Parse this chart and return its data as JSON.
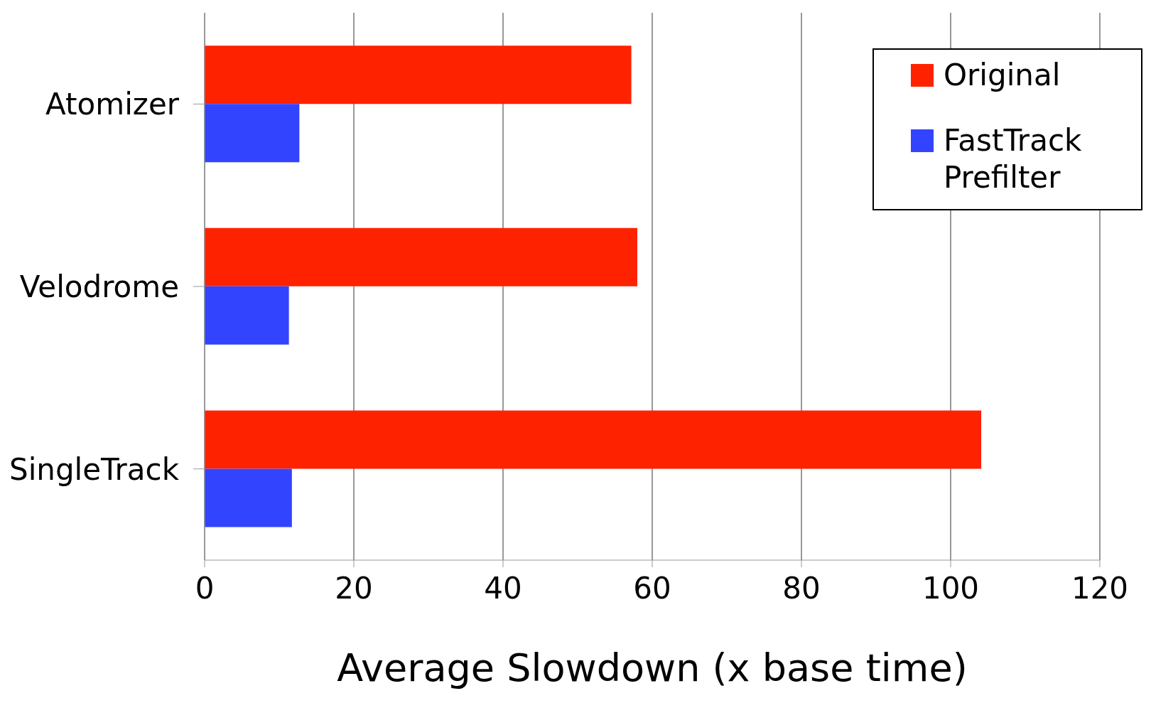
{
  "chart_data": {
    "type": "bar",
    "orientation": "horizontal",
    "xlabel": "Average Slowdown (x base time)",
    "categories": [
      "Atomizer",
      "Velodrome",
      "SingleTrack"
    ],
    "series": [
      {
        "name": "Original",
        "color": "#ff2200",
        "values": [
          57.2,
          58,
          104.1
        ]
      },
      {
        "name": "FastTrack Prefilter",
        "color": "#3344ff",
        "values": [
          12.7,
          11.3,
          11.7
        ]
      }
    ],
    "xlim": [
      0,
      120
    ],
    "xticks": [
      0,
      20,
      40,
      60,
      80,
      100,
      120
    ],
    "grid": "x",
    "legend": "top right"
  }
}
